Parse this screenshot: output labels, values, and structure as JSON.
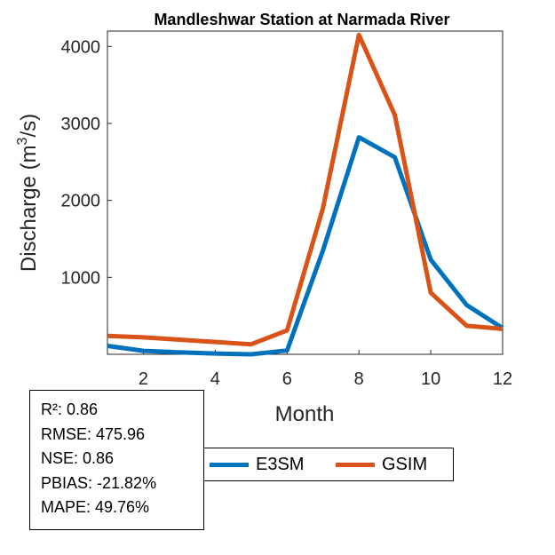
{
  "chart_data": {
    "type": "line",
    "title": "Mandleshwar  Station at  Narmada  River",
    "xlabel": "Month",
    "ylabel_main": "Discharge (m",
    "ylabel_sup": "3",
    "ylabel_end": "/s)",
    "xlim": [
      1,
      12
    ],
    "ylim": [
      0,
      4200
    ],
    "xticks": [
      2,
      4,
      6,
      8,
      10,
      12
    ],
    "yticks": [
      1000,
      2000,
      3000,
      4000
    ],
    "grid": false,
    "x": [
      1,
      2,
      3,
      4,
      5,
      6,
      7,
      8,
      9,
      10,
      11,
      12
    ],
    "series": [
      {
        "name": "E3SM",
        "color": "#0072BD",
        "values": [
          110,
          45,
          25,
          10,
          0,
          50,
          1350,
          2820,
          2560,
          1230,
          640,
          340
        ]
      },
      {
        "name": "GSIM",
        "color": "#D95319",
        "values": [
          240,
          220,
          190,
          160,
          130,
          310,
          1900,
          4150,
          3110,
          800,
          370,
          330
        ]
      }
    ],
    "legend_position": "bottom"
  },
  "stats": [
    "R²: 0.86",
    "RMSE: 475.96",
    "NSE: 0.86",
    "PBIAS: -21.82%",
    "MAPE: 49.76%"
  ]
}
